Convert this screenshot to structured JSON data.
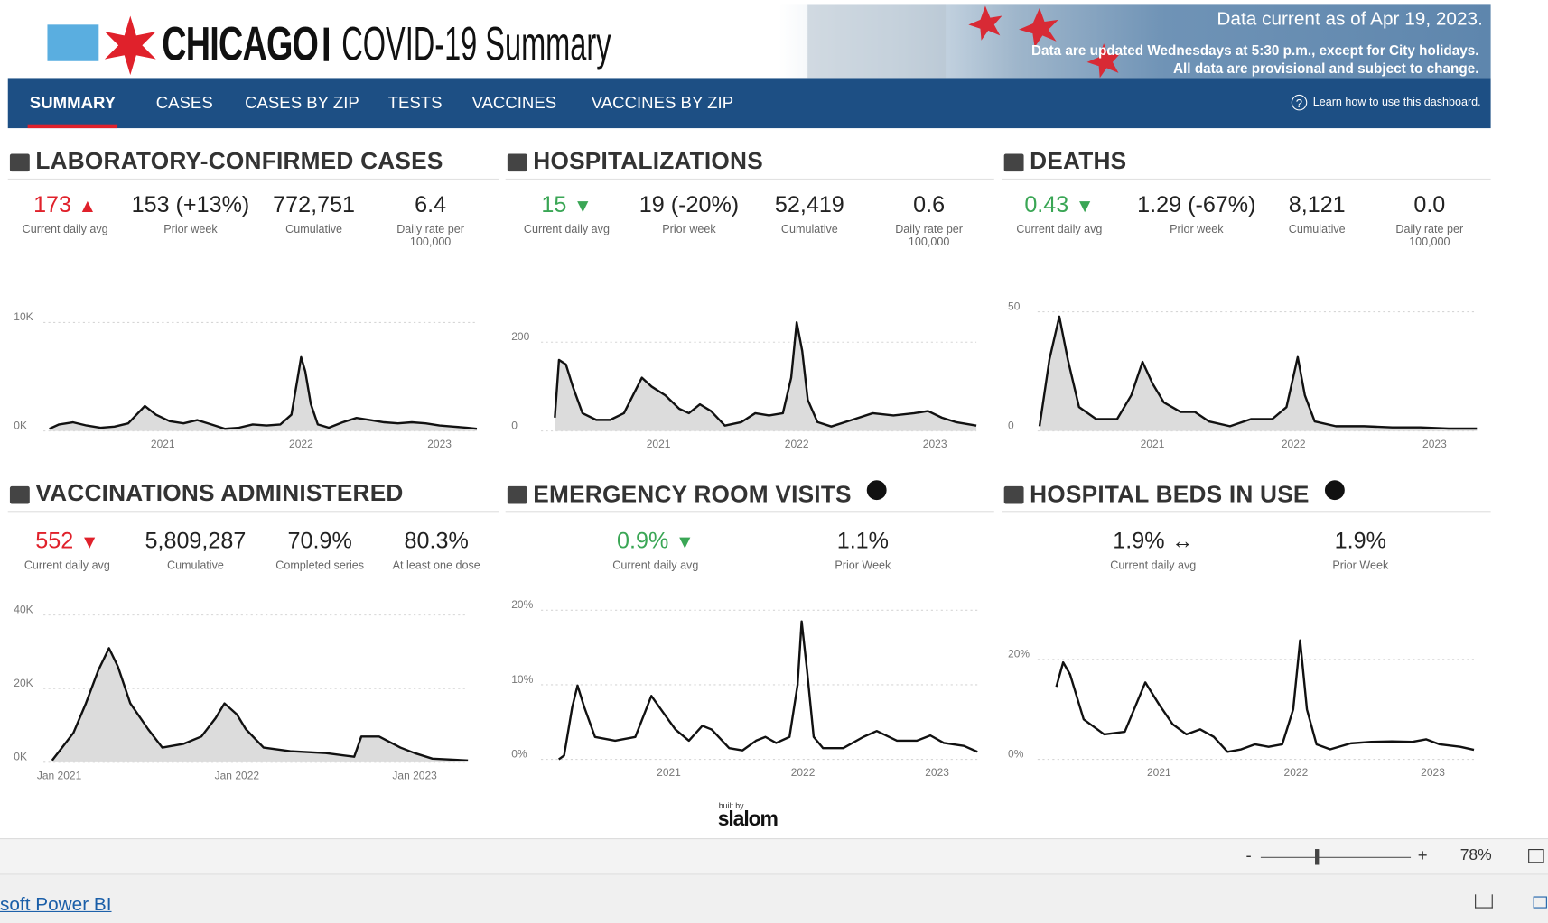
{
  "header": {
    "city": "CHICAGO",
    "title": "COVID-19 Summary",
    "data_current": "Data current as of Apr 19, 2023.",
    "update_note": "Data are updated Wednesdays at 5:30 p.m., except for City holidays.",
    "provisional_note": "All data are provisional and subject to change."
  },
  "nav": {
    "tabs": [
      "SUMMARY",
      "CASES",
      "CASES BY ZIP",
      "TESTS",
      "VACCINES",
      "VACCINES BY ZIP"
    ],
    "active": 0,
    "help": "Learn how to use this dashboard."
  },
  "panels": [
    {
      "title": "LABORATORY-CONFIRMED CASES",
      "stats": [
        {
          "value": "173",
          "trend": "▲",
          "color": "#e0212b",
          "label": "Current daily avg"
        },
        {
          "value": "153 (+13%)",
          "label": "Prior week"
        },
        {
          "value": "772,751",
          "label": "Cumulative"
        },
        {
          "value": "6.4",
          "label": "Daily rate per 100,000"
        }
      ],
      "chart": {
        "type": "line",
        "area": true,
        "color": "#111111",
        "area_color": "#dcdcdc",
        "x": [
          2020.18,
          2020.25,
          2020.35,
          2020.45,
          2020.55,
          2020.65,
          2020.75,
          2020.87,
          2020.95,
          2021.05,
          2021.15,
          2021.25,
          2021.35,
          2021.45,
          2021.55,
          2021.65,
          2021.75,
          2021.85,
          2021.93,
          2021.97,
          2022.0,
          2022.03,
          2022.07,
          2022.12,
          2022.2,
          2022.3,
          2022.4,
          2022.5,
          2022.6,
          2022.7,
          2022.8,
          2022.9,
          2023.0,
          2023.1,
          2023.2,
          2023.27
        ],
        "values": [
          200,
          600,
          800,
          500,
          300,
          400,
          700,
          2300,
          1500,
          900,
          700,
          1000,
          600,
          200,
          300,
          600,
          500,
          600,
          1500,
          4500,
          6800,
          5500,
          2500,
          600,
          300,
          800,
          1200,
          1000,
          800,
          700,
          800,
          700,
          500,
          400,
          300,
          200
        ],
        "xlim": [
          2020.18,
          2023.27
        ],
        "xticks": [
          2021,
          2022,
          2023
        ],
        "ylim": [
          0,
          12000
        ],
        "yticks": [
          {
            "value": 0,
            "label": "0K"
          },
          {
            "value": 10000,
            "label": "10K"
          }
        ],
        "grid": true
      }
    },
    {
      "title": "HOSPITALIZATIONS",
      "stats": [
        {
          "value": "15",
          "trend": "▼",
          "color": "#3aa655",
          "label": "Current daily avg"
        },
        {
          "value": "19 (-20%)",
          "label": "Prior week"
        },
        {
          "value": "52,419",
          "label": "Cumulative"
        },
        {
          "value": "0.6",
          "label": "Daily rate per 100,000"
        }
      ],
      "chart": {
        "type": "line",
        "area": true,
        "color": "#111111",
        "area_color": "#dcdcdc",
        "x": [
          2020.25,
          2020.28,
          2020.33,
          2020.38,
          2020.45,
          2020.55,
          2020.65,
          2020.75,
          2020.88,
          2020.95,
          2021.05,
          2021.15,
          2021.22,
          2021.3,
          2021.38,
          2021.48,
          2021.6,
          2021.7,
          2021.8,
          2021.9,
          2021.96,
          2022.0,
          2022.04,
          2022.08,
          2022.15,
          2022.25,
          2022.4,
          2022.55,
          2022.7,
          2022.85,
          2022.95,
          2023.05,
          2023.15,
          2023.3
        ],
        "values": [
          30,
          160,
          150,
          100,
          40,
          25,
          25,
          40,
          120,
          100,
          80,
          50,
          40,
          60,
          45,
          12,
          20,
          40,
          35,
          40,
          120,
          245,
          180,
          70,
          20,
          10,
          25,
          40,
          35,
          40,
          45,
          30,
          20,
          12
        ],
        "xlim": [
          2020.25,
          2023.3
        ],
        "xticks": [
          2021,
          2022,
          2023
        ],
        "ylim": [
          0,
          300
        ],
        "yticks": [
          0,
          200
        ],
        "grid": true
      }
    },
    {
      "title": "DEATHS",
      "stats": [
        {
          "value": "0.43",
          "trend": "▼",
          "color": "#3aa655",
          "label": "Current daily avg"
        },
        {
          "value": "1.29 (-67%)",
          "label": "Prior week"
        },
        {
          "value": "8,121",
          "label": "Cumulative"
        },
        {
          "value": "0.0",
          "label": "Daily rate per 100,000"
        }
      ],
      "chart": {
        "type": "line",
        "area": true,
        "color": "#111111",
        "area_color": "#dcdcdc",
        "x": [
          2020.2,
          2020.27,
          2020.34,
          2020.4,
          2020.48,
          2020.6,
          2020.75,
          2020.85,
          2020.93,
          2021.0,
          2021.08,
          2021.2,
          2021.3,
          2021.4,
          2021.55,
          2021.7,
          2021.85,
          2021.95,
          2022.03,
          2022.08,
          2022.15,
          2022.3,
          2022.5,
          2022.7,
          2022.9,
          2023.1,
          2023.3
        ],
        "values": [
          2,
          30,
          48,
          30,
          10,
          5,
          5,
          15,
          29,
          20,
          12,
          8,
          8,
          4,
          2,
          5,
          5,
          10,
          31,
          15,
          4,
          2,
          2,
          1.5,
          1.5,
          1,
          1
        ],
        "xlim": [
          2020.2,
          2023.3
        ],
        "xticks": [
          2021,
          2022,
          2023
        ],
        "ylim": [
          0,
          60
        ],
        "yticks": [
          0,
          50
        ],
        "grid": true
      }
    },
    {
      "title": "VACCINATIONS ADMINISTERED",
      "stats": [
        {
          "value": "552",
          "trend": "▼",
          "color": "#e0212b",
          "label": "Current daily avg"
        },
        {
          "value": "5,809,287",
          "label": "Cumulative"
        },
        {
          "value": "70.9%",
          "label": "Completed series"
        },
        {
          "value": "80.3%",
          "label": "At least one dose"
        }
      ],
      "chart": {
        "type": "line",
        "area": true,
        "color": "#111111",
        "area_color": "#dcdcdc",
        "x": [
          2020.96,
          2021.0,
          2021.08,
          2021.15,
          2021.22,
          2021.28,
          2021.33,
          2021.4,
          2021.5,
          2021.58,
          2021.7,
          2021.8,
          2021.88,
          2021.93,
          2022.0,
          2022.05,
          2022.15,
          2022.3,
          2022.5,
          2022.66,
          2022.7,
          2022.8,
          2022.92,
          2023.0,
          2023.1,
          2023.3
        ],
        "values": [
          500,
          3000,
          8000,
          16000,
          25000,
          31000,
          26000,
          16000,
          9000,
          4000,
          5000,
          7000,
          12000,
          16000,
          13000,
          9000,
          4000,
          3000,
          2500,
          1500,
          7000,
          7000,
          4000,
          2500,
          1000,
          500
        ],
        "xlim": [
          2020.95,
          2023.3
        ],
        "xticks": [
          {
            "value": 2021,
            "label": "Jan 2021"
          },
          {
            "value": 2022,
            "label": "Jan 2022"
          },
          {
            "value": 2023,
            "label": "Jan 2023"
          }
        ],
        "ylim": [
          0,
          45000
        ],
        "yticks": [
          {
            "value": 0,
            "label": "0K"
          },
          {
            "value": 20000,
            "label": "20K"
          },
          {
            "value": 40000,
            "label": "40K"
          }
        ],
        "grid": true
      }
    },
    {
      "title": "EMERGENCY ROOM VISITS",
      "info": true,
      "stats": [
        {
          "value": "0.9%",
          "trend": "▼",
          "color": "#3aa655",
          "label": "Current daily avg"
        },
        {
          "value": "1.1%",
          "label": "Prior Week"
        }
      ],
      "chart": {
        "type": "line",
        "area": false,
        "color": "#111111",
        "x": [
          2020.18,
          2020.22,
          2020.28,
          2020.32,
          2020.37,
          2020.45,
          2020.6,
          2020.75,
          2020.87,
          2020.95,
          2021.05,
          2021.15,
          2021.25,
          2021.32,
          2021.45,
          2021.55,
          2021.65,
          2021.72,
          2021.8,
          2021.9,
          2021.96,
          2021.99,
          2022.03,
          2022.08,
          2022.15,
          2022.3,
          2022.45,
          2022.55,
          2022.7,
          2022.85,
          2022.95,
          2023.05,
          2023.2,
          2023.3
        ],
        "values": [
          0,
          0.5,
          7,
          9.9,
          7,
          3,
          2.5,
          3,
          8.5,
          6.5,
          4,
          2.5,
          4.5,
          4,
          1.5,
          1.2,
          2.5,
          3,
          2.2,
          3,
          10,
          18.5,
          12,
          3,
          1.5,
          1.5,
          3,
          3.8,
          2.5,
          2.5,
          3.2,
          2.2,
          1.8,
          1
        ],
        "xlim": [
          2020.18,
          2023.3
        ],
        "xticks": [
          2021,
          2022,
          2023
        ],
        "ylim": [
          0,
          25
        ],
        "yticks": [
          {
            "value": 0,
            "label": "0%"
          },
          {
            "value": 10,
            "label": "10%"
          },
          {
            "value": 20,
            "label": "20%"
          }
        ],
        "grid": true
      }
    },
    {
      "title": "HOSPITAL BEDS IN USE",
      "info": true,
      "stats": [
        {
          "value": "1.9%",
          "trend": "↔",
          "label": "Current daily avg"
        },
        {
          "value": "1.9%",
          "label": "Prior Week"
        }
      ],
      "chart": {
        "type": "line",
        "area": false,
        "color": "#111111",
        "x": [
          2020.25,
          2020.3,
          2020.35,
          2020.45,
          2020.6,
          2020.75,
          2020.9,
          2021.0,
          2021.1,
          2021.2,
          2021.3,
          2021.4,
          2021.5,
          2021.6,
          2021.7,
          2021.8,
          2021.9,
          2021.98,
          2022.03,
          2022.08,
          2022.15,
          2022.25,
          2022.4,
          2022.55,
          2022.7,
          2022.85,
          2022.95,
          2023.05,
          2023.2,
          2023.3
        ],
        "values": [
          14.5,
          19.4,
          17,
          8,
          5,
          5.5,
          15.4,
          11,
          7,
          5,
          6,
          4.5,
          1.5,
          2,
          3,
          2.5,
          3,
          10,
          23.8,
          10,
          3,
          2,
          3.2,
          3.5,
          3.6,
          3.5,
          4,
          3,
          2.5,
          1.9
        ],
        "xlim": [
          2020.25,
          2023.3
        ],
        "xticks": [
          2021,
          2022,
          2023
        ],
        "ylim": [
          0,
          30
        ],
        "yticks": [
          {
            "value": 0,
            "label": "0%"
          },
          {
            "value": 20,
            "label": "20%"
          }
        ],
        "grid": true
      }
    }
  ],
  "footer": {
    "built_by": "built by",
    "brand": "slalom",
    "zoom_minus": "-",
    "zoom_plus": "+",
    "zoom": "78%",
    "powerbi": "soft Power BI"
  }
}
